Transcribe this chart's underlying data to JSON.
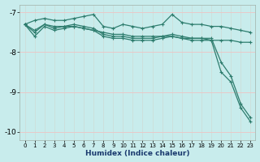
{
  "xlabel": "Humidex (Indice chaleur)",
  "bg_color": "#c8ecec",
  "grid_color": "#e8c8c8",
  "line_color": "#2e7d6e",
  "xlim": [
    -0.5,
    23.5
  ],
  "ylim": [
    -10.2,
    -6.8
  ],
  "yticks": [
    -10,
    -9,
    -8,
    -7
  ],
  "xticks": [
    0,
    1,
    2,
    3,
    4,
    5,
    6,
    7,
    8,
    9,
    10,
    11,
    12,
    13,
    14,
    15,
    16,
    17,
    18,
    19,
    20,
    21,
    22,
    23
  ],
  "series": [
    {
      "x": [
        0,
        1,
        2,
        3,
        4,
        5,
        6,
        7,
        8,
        9,
        10,
        11,
        12,
        13,
        14,
        15,
        16,
        17,
        18,
        19,
        20,
        21,
        22,
        23
      ],
      "y": [
        -7.3,
        -7.2,
        -7.15,
        -7.2,
        -7.2,
        -7.15,
        -7.1,
        -7.05,
        -7.35,
        -7.4,
        -7.3,
        -7.35,
        -7.4,
        -7.35,
        -7.3,
        -7.05,
        -7.25,
        -7.3,
        -7.3,
        -7.35,
        -7.35,
        -7.4,
        -7.45,
        -7.5
      ]
    },
    {
      "x": [
        0,
        1,
        2,
        3,
        4,
        5,
        6,
        7,
        8,
        9,
        10,
        11,
        12,
        13,
        14,
        15,
        16,
        17,
        18,
        19,
        20,
        21,
        22,
        23
      ],
      "y": [
        -7.3,
        -7.45,
        -7.3,
        -7.35,
        -7.35,
        -7.35,
        -7.4,
        -7.45,
        -7.5,
        -7.55,
        -7.55,
        -7.6,
        -7.6,
        -7.6,
        -7.6,
        -7.6,
        -7.65,
        -7.65,
        -7.65,
        -7.7,
        -7.7,
        -7.7,
        -7.75,
        -7.75
      ]
    },
    {
      "x": [
        0,
        1,
        2,
        3,
        4,
        5,
        6,
        7,
        8,
        9,
        10,
        11,
        12,
        13,
        14,
        15,
        16,
        17,
        18,
        19,
        20,
        21,
        22,
        23
      ],
      "y": [
        -7.3,
        -7.5,
        -7.3,
        -7.4,
        -7.35,
        -7.3,
        -7.35,
        -7.4,
        -7.55,
        -7.6,
        -7.6,
        -7.65,
        -7.65,
        -7.65,
        -7.6,
        -7.55,
        -7.6,
        -7.65,
        -7.65,
        -7.65,
        -8.25,
        -8.6,
        -9.3,
        -9.65
      ]
    },
    {
      "x": [
        0,
        1,
        2,
        3,
        4,
        5,
        6,
        7,
        8,
        9,
        10,
        11,
        12,
        13,
        14,
        15,
        16,
        17,
        18,
        19,
        20,
        21,
        22,
        23
      ],
      "y": [
        -7.3,
        -7.6,
        -7.35,
        -7.45,
        -7.4,
        -7.35,
        -7.4,
        -7.45,
        -7.6,
        -7.65,
        -7.65,
        -7.7,
        -7.7,
        -7.7,
        -7.65,
        -7.6,
        -7.65,
        -7.7,
        -7.7,
        -7.7,
        -8.5,
        -8.75,
        -9.4,
        -9.75
      ]
    }
  ]
}
